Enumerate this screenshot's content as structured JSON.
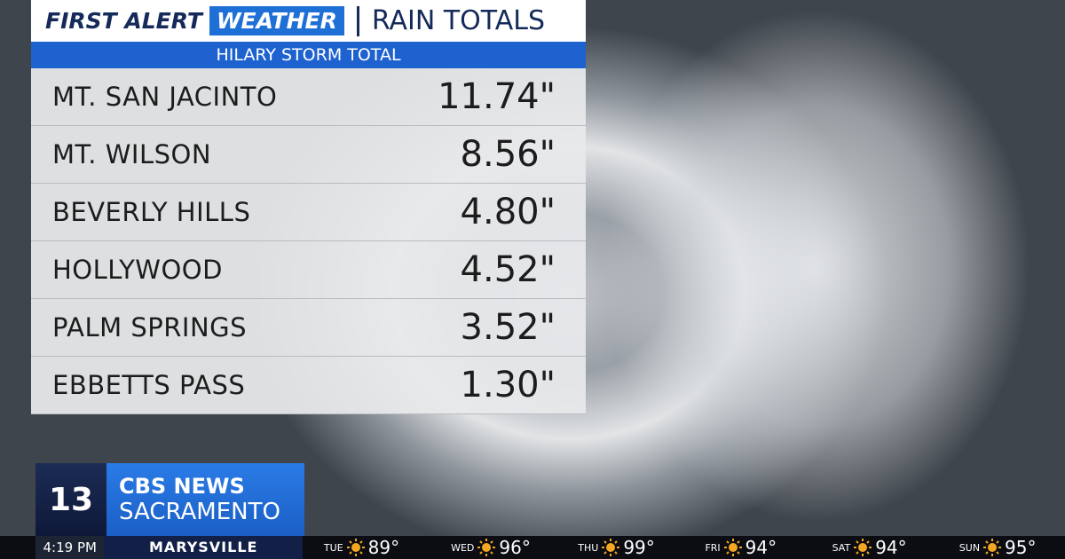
{
  "header": {
    "brand_first": "FIRST ALERT",
    "brand_weather": "WEATHER",
    "title": "RAIN TOTALS"
  },
  "subtitle": "HILARY STORM TOTAL",
  "table": {
    "rows": [
      [
        "MT. SAN JACINTO",
        "11.74\""
      ],
      [
        "MT. WILSON",
        "8.56\""
      ],
      [
        "BEVERLY HILLS",
        "4.80\""
      ],
      [
        "HOLLYWOOD",
        "4.52\""
      ],
      [
        "PALM SPRINGS",
        "3.52\""
      ],
      [
        "EBBETTS PASS",
        "1.30\""
      ]
    ]
  },
  "logo": {
    "channel": "13",
    "network": "CBS NEWS",
    "city": "SACRAMENTO"
  },
  "ticker": {
    "time": "4:19 PM",
    "location": "MARYSVILLE",
    "forecast": [
      {
        "day": "TUE",
        "temp": "89°"
      },
      {
        "day": "WED",
        "temp": "96°"
      },
      {
        "day": "THU",
        "temp": "99°"
      },
      {
        "day": "FRI",
        "temp": "94°"
      },
      {
        "day": "SAT",
        "temp": "94°"
      },
      {
        "day": "SUN",
        "temp": "95°"
      }
    ]
  }
}
